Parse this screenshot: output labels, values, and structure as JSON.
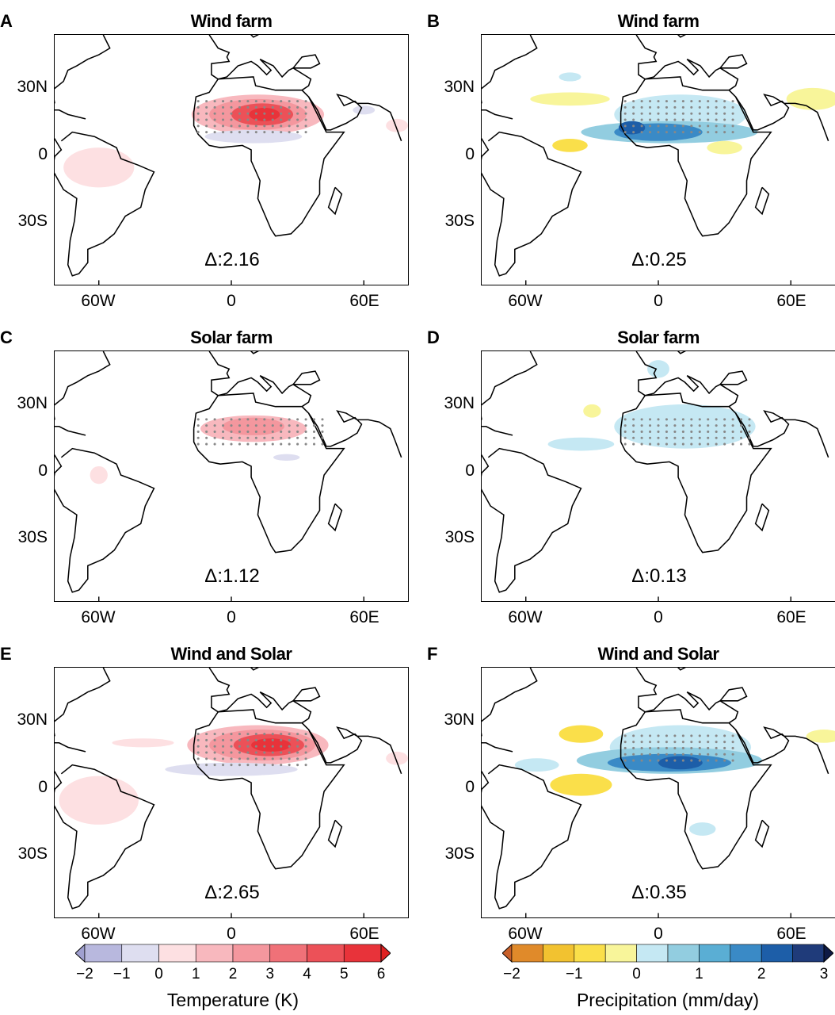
{
  "chart_data": [
    {
      "type": "map",
      "panel": "A",
      "title": "Wind farm",
      "variable": "temperature",
      "delta": "Δ:2.16",
      "fields": [
        {
          "lon": 12,
          "lat": 20,
          "rlon": 30,
          "rlat": 9,
          "value": 1
        },
        {
          "lon": 12,
          "lat": 20,
          "rlon": 22,
          "rlat": 7,
          "value": 2.5
        },
        {
          "lon": 14,
          "lat": 20,
          "rlon": 14,
          "rlat": 5,
          "value": 4
        },
        {
          "lon": 15,
          "lat": 20,
          "rlon": 7,
          "rlat": 3,
          "value": 5.5
        },
        {
          "lon": 10,
          "lat": 10,
          "rlon": 22,
          "rlat": 3,
          "value": -0.5
        },
        {
          "lon": -60,
          "lat": -4,
          "rlon": 16,
          "rlat": 9,
          "value": 0.5
        },
        {
          "lon": 75,
          "lat": 15,
          "rlon": 5,
          "rlat": 3,
          "value": 0.5
        },
        {
          "lon": 60,
          "lat": 22,
          "rlon": 5,
          "rlat": 2,
          "value": -0.5
        }
      ],
      "stipple": [
        [
          -15,
          36,
          12,
          28
        ]
      ]
    },
    {
      "type": "map",
      "panel": "B",
      "title": "Wind farm",
      "variable": "precipitation",
      "delta": "Δ:0.25",
      "fields": [
        {
          "lon": 10,
          "lat": 20,
          "rlon": 30,
          "rlat": 9,
          "value": 0.3
        },
        {
          "lon": 5,
          "lat": 12,
          "rlon": 40,
          "rlat": 5,
          "value": 0.8
        },
        {
          "lon": 0,
          "lat": 12,
          "rlon": 20,
          "rlat": 4,
          "value": 1.6
        },
        {
          "lon": -12,
          "lat": 14,
          "rlon": 6,
          "rlat": 3,
          "value": 2.3
        },
        {
          "lon": -40,
          "lat": 27,
          "rlon": 18,
          "rlat": 3,
          "value": -0.3
        },
        {
          "lon": 70,
          "lat": 27,
          "rlon": 12,
          "rlat": 5,
          "value": -0.3
        },
        {
          "lon": -40,
          "lat": 6,
          "rlon": 8,
          "rlat": 3,
          "value": -0.8
        },
        {
          "lon": 30,
          "lat": 5,
          "rlon": 8,
          "rlat": 3,
          "value": -0.3
        },
        {
          "lon": -40,
          "lat": 37,
          "rlon": 5,
          "rlat": 2,
          "value": 0.3
        }
      ],
      "stipple": [
        [
          -15,
          36,
          12,
          28
        ]
      ]
    },
    {
      "type": "map",
      "panel": "C",
      "title": "Solar farm",
      "variable": "temperature",
      "delta": "Δ:1.12",
      "fields": [
        {
          "lon": 10,
          "lat": 21,
          "rlon": 24,
          "rlat": 6,
          "value": 1
        },
        {
          "lon": 10,
          "lat": 22,
          "rlon": 14,
          "rlat": 4,
          "value": 2
        },
        {
          "lon": -60,
          "lat": 0,
          "rlon": 4,
          "rlat": 4,
          "value": 0.5
        },
        {
          "lon": 25,
          "lat": 8,
          "rlon": 6,
          "rlat": 1.5,
          "value": -0.5
        }
      ],
      "stipple": [
        [
          -15,
          42,
          14,
          28
        ]
      ]
    },
    {
      "type": "map",
      "panel": "D",
      "title": "Solar farm",
      "variable": "precipitation",
      "delta": "Δ:0.13",
      "fields": [
        {
          "lon": 12,
          "lat": 22,
          "rlon": 32,
          "rlat": 10,
          "value": 0.3
        },
        {
          "lon": -35,
          "lat": 14,
          "rlon": 15,
          "rlat": 3,
          "value": 0.3
        },
        {
          "lon": -30,
          "lat": 29,
          "rlon": 4,
          "rlat": 3,
          "value": -0.3
        },
        {
          "lon": 0,
          "lat": 48,
          "rlon": 5,
          "rlat": 4,
          "value": 0.3
        }
      ],
      "stipple": [
        [
          -15,
          42,
          14,
          28
        ]
      ]
    },
    {
      "type": "map",
      "panel": "E",
      "title": "Wind and Solar",
      "variable": "temperature",
      "delta": "Δ:2.65",
      "fields": [
        {
          "lon": 12,
          "lat": 21,
          "rlon": 32,
          "rlat": 9,
          "value": 1
        },
        {
          "lon": 14,
          "lat": 21,
          "rlon": 24,
          "rlat": 7,
          "value": 2.5
        },
        {
          "lon": 17,
          "lat": 21,
          "rlon": 16,
          "rlat": 5,
          "value": 4
        },
        {
          "lon": 18,
          "lat": 21,
          "rlon": 9,
          "rlat": 3,
          "value": 5.5
        },
        {
          "lon": 0,
          "lat": 10,
          "rlon": 30,
          "rlat": 3,
          "value": -0.5
        },
        {
          "lon": -60,
          "lat": -4,
          "rlon": 18,
          "rlat": 11,
          "value": 0.5
        },
        {
          "lon": -40,
          "lat": 22,
          "rlon": 14,
          "rlat": 2,
          "value": 0.5
        },
        {
          "lon": 75,
          "lat": 15,
          "rlon": 5,
          "rlat": 3,
          "value": 0.5
        }
      ],
      "stipple": [
        [
          -15,
          36,
          12,
          28
        ]
      ]
    },
    {
      "type": "map",
      "panel": "F",
      "title": "Wind and Solar",
      "variable": "precipitation",
      "delta": "Δ:0.35",
      "fields": [
        {
          "lon": 10,
          "lat": 20,
          "rlon": 32,
          "rlat": 10,
          "value": 0.3
        },
        {
          "lon": 5,
          "lat": 14,
          "rlon": 42,
          "rlat": 6,
          "value": 0.8
        },
        {
          "lon": 5,
          "lat": 13,
          "rlon": 28,
          "rlat": 4,
          "value": 1.6
        },
        {
          "lon": 10,
          "lat": 13,
          "rlon": 10,
          "rlat": 3,
          "value": 2.4
        },
        {
          "lon": -35,
          "lat": 3,
          "rlon": 14,
          "rlat": 5,
          "value": -0.8
        },
        {
          "lon": -35,
          "lat": 26,
          "rlon": 10,
          "rlat": 4,
          "value": -0.6
        },
        {
          "lon": 75,
          "lat": 25,
          "rlon": 8,
          "rlat": 3,
          "value": -0.3
        },
        {
          "lon": 20,
          "lat": -17,
          "rlon": 6,
          "rlat": 3,
          "value": 0.3
        },
        {
          "lon": -55,
          "lat": 12,
          "rlon": 10,
          "rlat": 3,
          "value": 0.3
        }
      ],
      "stipple": [
        [
          -15,
          36,
          14,
          28
        ]
      ]
    }
  ],
  "axes": {
    "lat_ticks": [
      "30N",
      "0",
      "30S"
    ],
    "lon_ticks": [
      "60W",
      "0",
      "60E"
    ],
    "lon_range": [
      -80,
      80
    ],
    "lat_range": [
      -57,
      56
    ]
  },
  "colorbars": {
    "temperature": {
      "label": "Temperature (K)",
      "ticks": [
        "−2",
        "−1",
        "0",
        "1",
        "2",
        "3",
        "4",
        "5",
        "6"
      ],
      "colors": [
        "#b8b8de",
        "#dedef0",
        "#fde0e2",
        "#f8b8be",
        "#f4979e",
        "#f07178",
        "#ec5158",
        "#e8333a"
      ],
      "under": "#a0a0d0",
      "over": "#e02020"
    },
    "precipitation": {
      "label": "Precipitation (mm/day)",
      "ticks": [
        "−2",
        "−1",
        "0",
        "1",
        "2",
        "3"
      ],
      "colors": [
        "#e08a2a",
        "#f2c230",
        "#fadf4a",
        "#f8f59a",
        "#c5e8f3",
        "#92cde0",
        "#5aaed4",
        "#3a8ac6",
        "#1d5ea8",
        "#1f3b7a"
      ],
      "under": "#c8602a",
      "over": "#0e1a45"
    }
  }
}
